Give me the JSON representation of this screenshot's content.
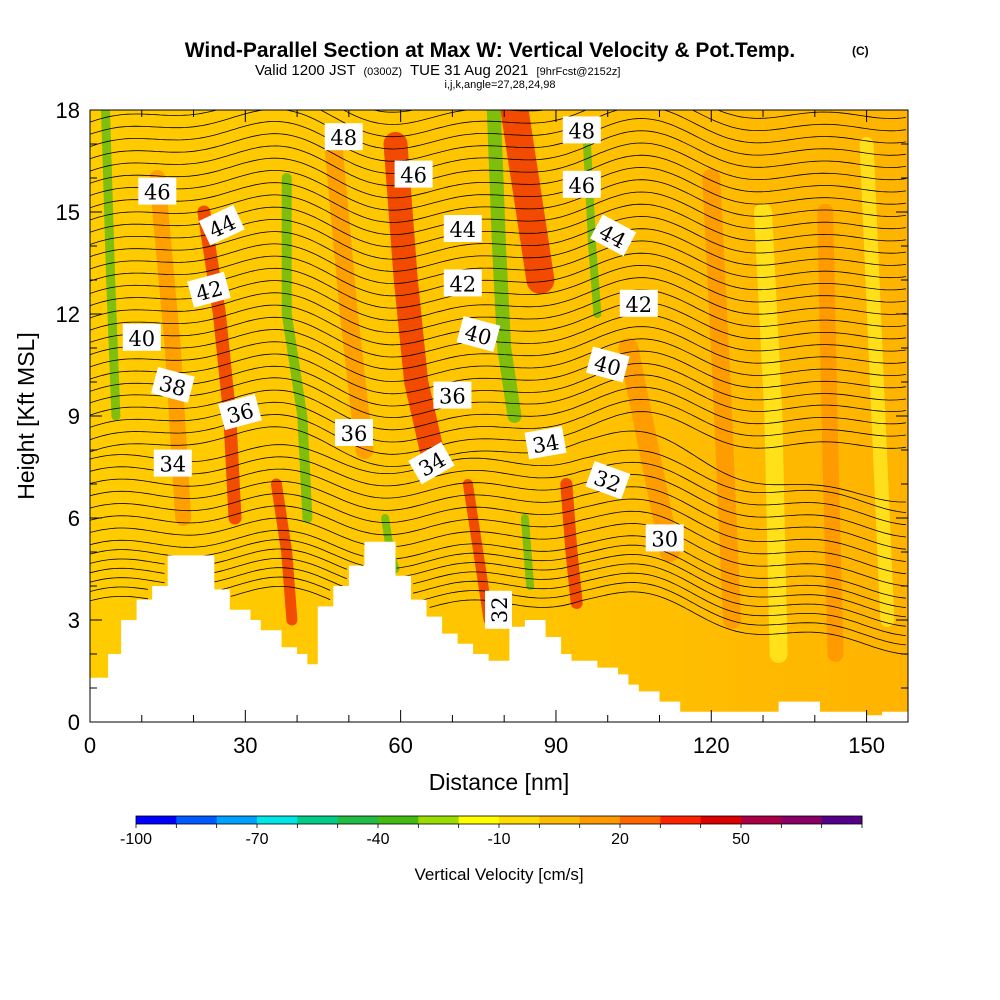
{
  "chart_data": {
    "type": "contour",
    "title": "Wind-Parallel Section at Max W: Vertical Velocity & Pot.Temp.",
    "title_suffix": "(C)",
    "subtitle_valid": "Valid 1200 JST",
    "subtitle_z": "(0300Z)",
    "subtitle_date": "TUE 31 Aug 2021",
    "subtitle_fcst": "[9hrFcst@2152z]",
    "subtitle_ijk": "i,j,k,angle=27,28,24,98",
    "xlabel": "Distance [nm]",
    "ylabel": "Height [Kft MSL]",
    "xlim": [
      0,
      158
    ],
    "ylim": [
      0,
      18
    ],
    "xticks": [
      0,
      30,
      60,
      90,
      120,
      150
    ],
    "yticks": [
      0,
      3,
      6,
      9,
      12,
      15,
      18
    ],
    "colorbar": {
      "title": "Vertical Velocity [cm/s]",
      "ticks": [
        "-100",
        "-70",
        "-40",
        "-10",
        "20",
        "50"
      ],
      "colors": [
        "#0000ff",
        "#005aff",
        "#00a0ff",
        "#00e6e6",
        "#00cc88",
        "#22bb44",
        "#44bb11",
        "#99dd00",
        "#ffff00",
        "#ffdd00",
        "#ffbb00",
        "#ff9900",
        "#ff6600",
        "#ff2200",
        "#dd0000",
        "#aa0044",
        "#880066",
        "#550088"
      ]
    },
    "theta_labels": [
      {
        "text": "48",
        "x": 49,
        "y": 17.2,
        "angle": 0
      },
      {
        "text": "48",
        "x": 95,
        "y": 17.4,
        "angle": 0
      },
      {
        "text": "46",
        "x": 13,
        "y": 15.6,
        "angle": 0
      },
      {
        "text": "46",
        "x": 62.5,
        "y": 16.1,
        "angle": 0
      },
      {
        "text": "46",
        "x": 95,
        "y": 15.8,
        "angle": 0
      },
      {
        "text": "44",
        "x": 25.5,
        "y": 14.6,
        "angle": -25
      },
      {
        "text": "44",
        "x": 72,
        "y": 14.5,
        "angle": 0
      },
      {
        "text": "44",
        "x": 101,
        "y": 14.3,
        "angle": 28
      },
      {
        "text": "42",
        "x": 23,
        "y": 12.7,
        "angle": -15
      },
      {
        "text": "42",
        "x": 72,
        "y": 12.9,
        "angle": 0
      },
      {
        "text": "42",
        "x": 106,
        "y": 12.3,
        "angle": 0
      },
      {
        "text": "40",
        "x": 10,
        "y": 11.3,
        "angle": 0
      },
      {
        "text": "40",
        "x": 75,
        "y": 11.4,
        "angle": 15
      },
      {
        "text": "40",
        "x": 100,
        "y": 10.5,
        "angle": 15
      },
      {
        "text": "38",
        "x": 16,
        "y": 9.9,
        "angle": 15
      },
      {
        "text": "36",
        "x": 29,
        "y": 9.1,
        "angle": -15
      },
      {
        "text": "36",
        "x": 70,
        "y": 9.6,
        "angle": 0
      },
      {
        "text": "36",
        "x": 51,
        "y": 8.5,
        "angle": 0
      },
      {
        "text": "34",
        "x": 16,
        "y": 7.6,
        "angle": 0
      },
      {
        "text": "34",
        "x": 66,
        "y": 7.6,
        "angle": -30
      },
      {
        "text": "34",
        "x": 88,
        "y": 8.2,
        "angle": -10
      },
      {
        "text": "32",
        "x": 100,
        "y": 7.1,
        "angle": 20
      },
      {
        "text": "32",
        "x": 79,
        "y": 3.3,
        "angle": -90
      },
      {
        "text": "30",
        "x": 111,
        "y": 5.4,
        "angle": 0
      }
    ],
    "terrain": [
      [
        0,
        1.3
      ],
      [
        3.5,
        1.3
      ],
      [
        3.5,
        2
      ],
      [
        6,
        2
      ],
      [
        6,
        3
      ],
      [
        9,
        3
      ],
      [
        9,
        3.6
      ],
      [
        12,
        3.6
      ],
      [
        12,
        4
      ],
      [
        15,
        4
      ],
      [
        15,
        4.9
      ],
      [
        24,
        4.9
      ],
      [
        24,
        3.9
      ],
      [
        27,
        3.9
      ],
      [
        27,
        3.3
      ],
      [
        31,
        3.3
      ],
      [
        31,
        3
      ],
      [
        33,
        3
      ],
      [
        33,
        2.7
      ],
      [
        37,
        2.7
      ],
      [
        37,
        2.2
      ],
      [
        40,
        2.2
      ],
      [
        40,
        2
      ],
      [
        42,
        2
      ],
      [
        42,
        1.7
      ],
      [
        44,
        1.7
      ],
      [
        44,
        3.4
      ],
      [
        47,
        3.4
      ],
      [
        47,
        4
      ],
      [
        50,
        4
      ],
      [
        50,
        4.6
      ],
      [
        53,
        4.6
      ],
      [
        53,
        5.3
      ],
      [
        59,
        5.3
      ],
      [
        59,
        4.3
      ],
      [
        62,
        4.3
      ],
      [
        62,
        3.6
      ],
      [
        65,
        3.6
      ],
      [
        65,
        3.1
      ],
      [
        68,
        3.1
      ],
      [
        68,
        2.6
      ],
      [
        71,
        2.6
      ],
      [
        71,
        2.3
      ],
      [
        74,
        2.3
      ],
      [
        74,
        2
      ],
      [
        77,
        2
      ],
      [
        77,
        1.8
      ],
      [
        81,
        1.8
      ],
      [
        81,
        2.8
      ],
      [
        84,
        2.8
      ],
      [
        84,
        3
      ],
      [
        88,
        3
      ],
      [
        88,
        2.5
      ],
      [
        91,
        2.5
      ],
      [
        91,
        2
      ],
      [
        93,
        2
      ],
      [
        93,
        1.8
      ],
      [
        98,
        1.8
      ],
      [
        98,
        1.6
      ],
      [
        102,
        1.6
      ],
      [
        102,
        1.4
      ],
      [
        104,
        1.4
      ],
      [
        104,
        1.1
      ],
      [
        106,
        1.1
      ],
      [
        106,
        0.9
      ],
      [
        110,
        0.9
      ],
      [
        110,
        0.6
      ],
      [
        114,
        0.6
      ],
      [
        114,
        0.3
      ],
      [
        120,
        0.3
      ],
      [
        120,
        0.3
      ],
      [
        125,
        0.3
      ],
      [
        125,
        0.3
      ],
      [
        133,
        0.3
      ],
      [
        133,
        0.6
      ],
      [
        141,
        0.6
      ],
      [
        141,
        0.3
      ],
      [
        150,
        0.3
      ],
      [
        150,
        0.2
      ],
      [
        153,
        0.2
      ],
      [
        153,
        0.3
      ],
      [
        158,
        0.3
      ],
      [
        158,
        0
      ],
      [
        0,
        0
      ]
    ]
  }
}
